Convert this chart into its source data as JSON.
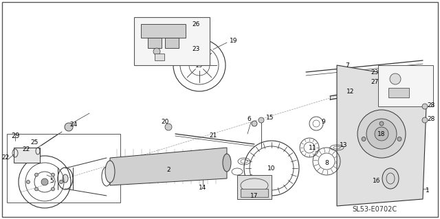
{
  "title": "",
  "bg_color": "#ffffff",
  "border_color": "#888888",
  "line_color": "#333333",
  "diagram_code": "SL53-E0702C",
  "part_numbers": [
    1,
    2,
    5,
    6,
    7,
    8,
    9,
    10,
    11,
    12,
    13,
    14,
    15,
    16,
    17,
    18,
    19,
    20,
    21,
    22,
    23,
    24,
    25,
    26,
    27,
    28,
    29
  ],
  "fig_width": 6.4,
  "fig_height": 3.19,
  "dpi": 100
}
